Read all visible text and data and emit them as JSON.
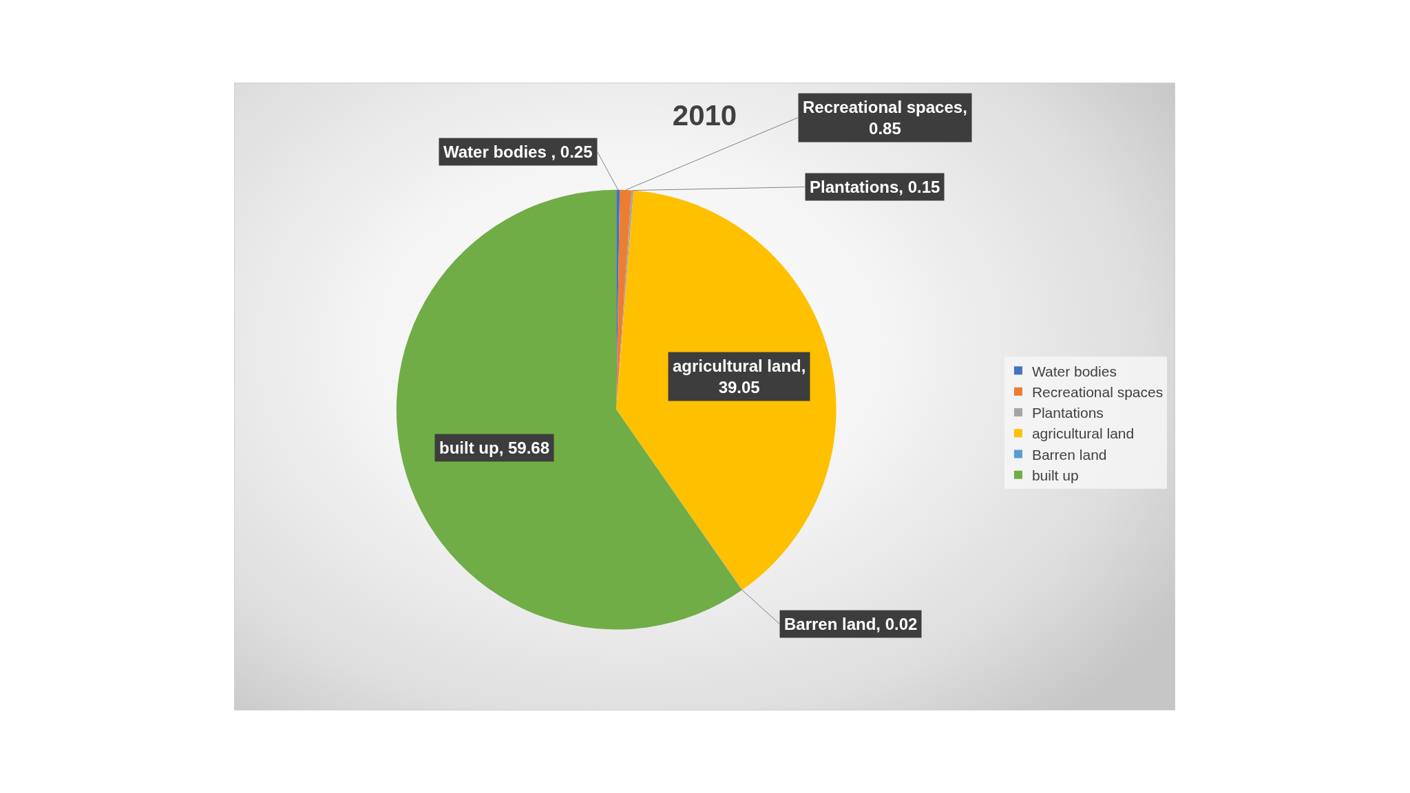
{
  "chart_data": {
    "type": "pie",
    "title": "2010",
    "categories": [
      "Water bodies",
      "Recreational spaces",
      "Plantations",
      "agricultural land",
      "Barren land",
      "built up"
    ],
    "values": [
      0.25,
      0.85,
      0.15,
      39.05,
      0.02,
      59.68
    ],
    "colors": [
      "#4472c4",
      "#ed7d31",
      "#a5a5a5",
      "#ffc000",
      "#5b9bd5",
      "#70ad47"
    ],
    "value_labels": [
      "Water bodies , 0.25",
      "Recreational spaces, 0.85",
      "Plantations, 0.15",
      "agricultural land, 39.05",
      "Barren land, 0.02",
      "built up, 59.68"
    ],
    "legend": "right"
  }
}
